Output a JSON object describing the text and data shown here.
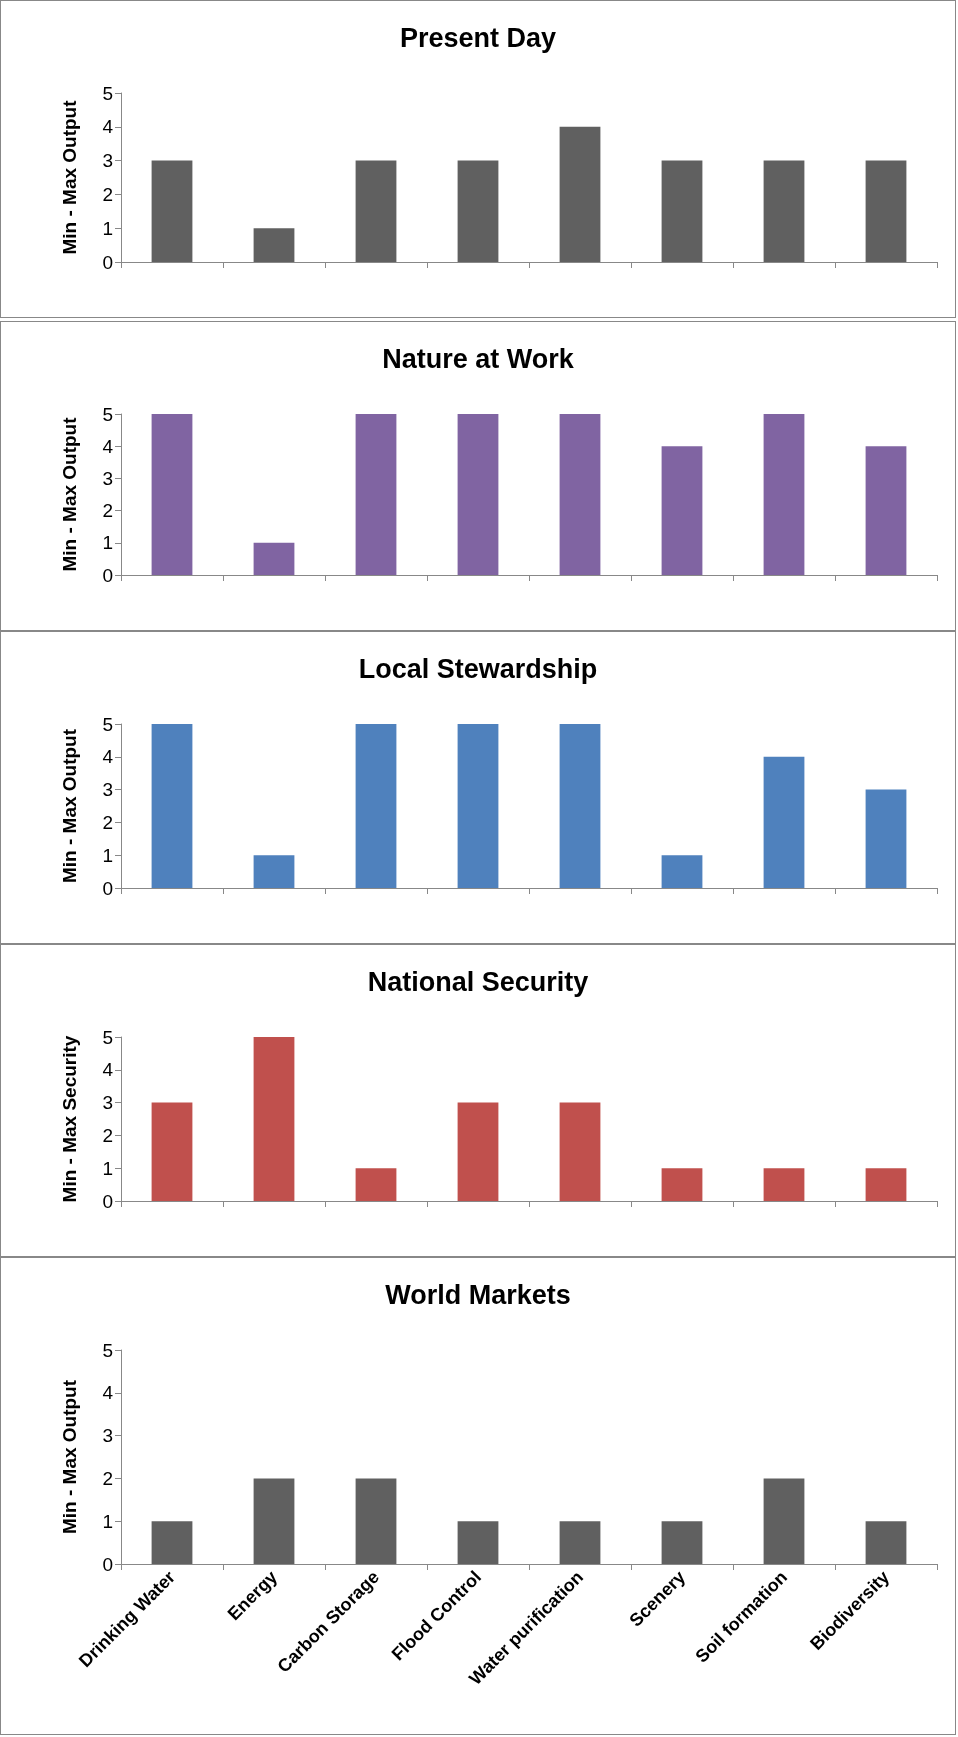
{
  "chart_data": [
    {
      "type": "bar",
      "title": "Present Day",
      "ylabel": "Min - Max Output",
      "categories": [
        null,
        null,
        null,
        null,
        null,
        null,
        null,
        null
      ],
      "values": [
        3,
        1,
        3,
        3,
        4,
        3,
        3,
        3
      ],
      "color": "#606060",
      "ylim": [
        0,
        5
      ],
      "yticks": [
        0,
        1,
        2,
        3,
        4,
        5
      ],
      "tick_labels": "y"
    },
    {
      "type": "bar",
      "title": "Nature at Work",
      "ylabel": "Min - Max Output",
      "categories": [
        null,
        null,
        null,
        null,
        null,
        null,
        null,
        null
      ],
      "values": [
        5,
        1,
        5,
        5,
        5,
        4,
        5,
        4
      ],
      "color": "#8064a2",
      "ylim": [
        0,
        5
      ],
      "yticks": [
        0,
        1,
        2,
        3,
        4,
        5
      ],
      "tick_labels": "y"
    },
    {
      "type": "bar",
      "title": "Local Stewardship",
      "ylabel": "Min - Max Output",
      "categories": [
        null,
        null,
        null,
        null,
        null,
        null,
        null,
        null
      ],
      "values": [
        5,
        1,
        5,
        5,
        5,
        1,
        4,
        3
      ],
      "color": "#4f81bd",
      "ylim": [
        0,
        5
      ],
      "yticks": [
        0,
        1,
        2,
        3,
        4,
        5
      ],
      "tick_labels": "y"
    },
    {
      "type": "bar",
      "title": "National Security",
      "ylabel": "Min - Max Security",
      "categories": [
        null,
        null,
        null,
        null,
        null,
        null,
        null,
        null
      ],
      "values": [
        3,
        5,
        1,
        3,
        3,
        1,
        1,
        1
      ],
      "color": "#c0504d",
      "ylim": [
        0,
        5
      ],
      "yticks": [
        0,
        1,
        2,
        3,
        4,
        5
      ],
      "tick_labels": "y"
    },
    {
      "type": "bar",
      "title": "World Markets",
      "ylabel": "Min - Max Output",
      "categories": [
        "Drinking Water",
        "Energy",
        "Carbon Storage",
        "Flood Control",
        "Water purification",
        "Scenery",
        "Soil formation",
        "Biodiversity"
      ],
      "values": [
        1,
        2,
        2,
        1,
        1,
        1,
        2,
        1
      ],
      "color": "#606060",
      "ylim": [
        0,
        5
      ],
      "yticks": [
        0,
        1,
        2,
        3,
        4,
        5
      ]
    }
  ]
}
